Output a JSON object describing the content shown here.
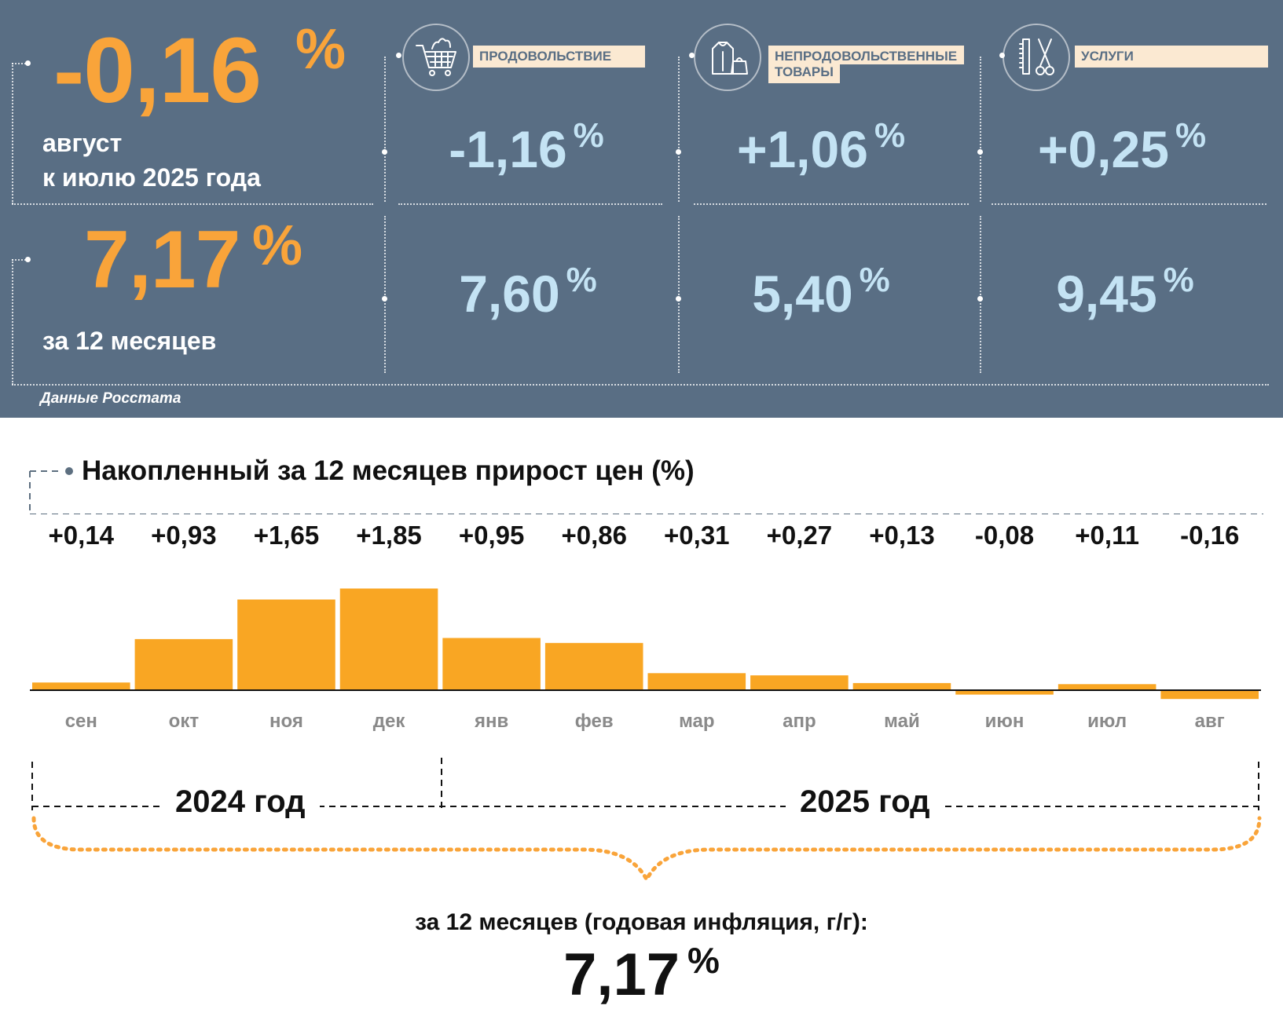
{
  "summary": {
    "monthly": {
      "value": "-0,16",
      "unit": "%",
      "line1": "август",
      "line2": "к июлю 2025 года"
    },
    "annual": {
      "value": "7,17",
      "unit": "%",
      "label": "за 12 месяцев"
    }
  },
  "categories": [
    {
      "label": "ПРОДОВОЛЬСТВИЕ",
      "icon": "shopping-cart-icon",
      "monthly": "-1,16",
      "annual": "7,60",
      "unit": "%"
    },
    {
      "label": "НЕПРОДОВОЛЬСТВЕННЫЕ\nТОВАРЫ",
      "icon": "clothes-bag-icon",
      "monthly": "+1,06",
      "annual": "5,40",
      "unit": "%"
    },
    {
      "label": "УСЛУГИ",
      "icon": "comb-scissors-icon",
      "monthly": "+0,25",
      "annual": "9,45",
      "unit": "%"
    }
  ],
  "source": "Данные Росстата",
  "colors": {
    "panel": "#596e84",
    "accent": "#f9a43a",
    "value_light": "#c4e3f4",
    "label_bg": "#fbe9d2"
  },
  "chart_data": {
    "type": "bar",
    "title": "Накопленный за 12 месяцев прирост цен (%)",
    "categories": [
      "сен",
      "окт",
      "ноя",
      "дек",
      "янв",
      "фев",
      "мар",
      "апр",
      "май",
      "июн",
      "июл",
      "авг"
    ],
    "values": [
      0.14,
      0.93,
      1.65,
      1.85,
      0.95,
      0.86,
      0.31,
      0.27,
      0.13,
      -0.08,
      0.11,
      -0.16
    ],
    "value_labels": [
      "+0,14",
      "+0,93",
      "+1,65",
      "+1,85",
      "+0,95",
      "+0,86",
      "+0,31",
      "+0,27",
      "+0,13",
      "-0,08",
      "+0,11",
      "-0,16"
    ],
    "year_groups": [
      {
        "label": "2024 год",
        "from": "сен",
        "to": "дек"
      },
      {
        "label": "2025 год",
        "from": "янв",
        "to": "авг"
      }
    ],
    "bar_color": "#f9a623",
    "grid": false
  },
  "bottom": {
    "caption": "за 12 месяцев (годовая инфляция, г/г):",
    "value": "7,17",
    "unit": "%"
  }
}
